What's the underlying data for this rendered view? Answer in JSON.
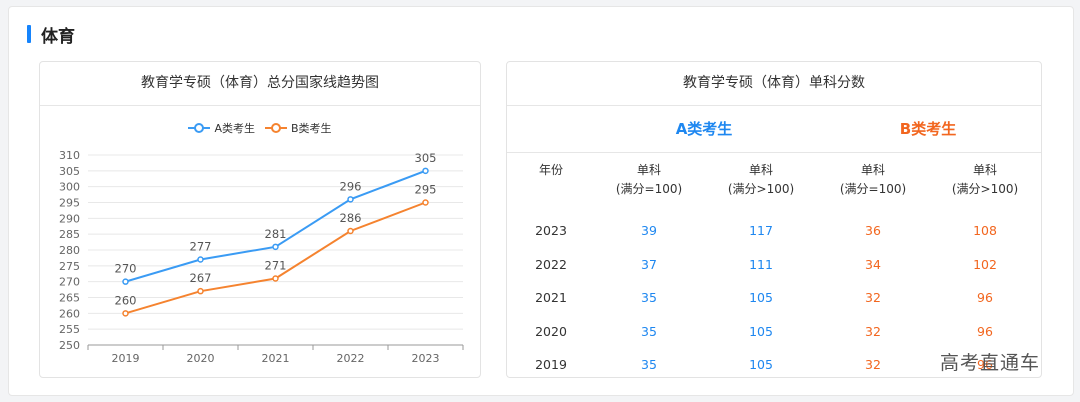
{
  "section_title": "体育",
  "left_card": {
    "title": "教育学专硕（体育）总分国家线趋势图"
  },
  "right_card": {
    "title": "教育学专硕（体育）单科分数"
  },
  "chart_data": {
    "type": "line",
    "categories": [
      "2019",
      "2020",
      "2021",
      "2022",
      "2023"
    ],
    "series": [
      {
        "name": "A类考生",
        "color": "#3a9bf4",
        "values": [
          270,
          277,
          281,
          296,
          305
        ]
      },
      {
        "name": "B类考生",
        "color": "#f5832f",
        "values": [
          260,
          267,
          271,
          286,
          295
        ]
      }
    ],
    "ylim": [
      250,
      310
    ],
    "yticks": [
      250,
      255,
      260,
      265,
      270,
      275,
      280,
      285,
      290,
      295,
      300,
      305,
      310
    ],
    "grid": true,
    "legend": "top-center"
  },
  "table": {
    "category_a": "A类考生",
    "category_b": "B类考生",
    "headers": [
      "年份",
      "单科\n(满分=100)",
      "单科\n(满分>100)",
      "单科\n(满分=100)",
      "单科\n(满分>100)"
    ],
    "rows": [
      [
        "2023",
        "39",
        "117",
        "36",
        "108"
      ],
      [
        "2022",
        "37",
        "111",
        "34",
        "102"
      ],
      [
        "2021",
        "35",
        "105",
        "32",
        "96"
      ],
      [
        "2020",
        "35",
        "105",
        "32",
        "96"
      ],
      [
        "2019",
        "35",
        "105",
        "32",
        "96"
      ]
    ]
  },
  "watermark": "高考直通车"
}
